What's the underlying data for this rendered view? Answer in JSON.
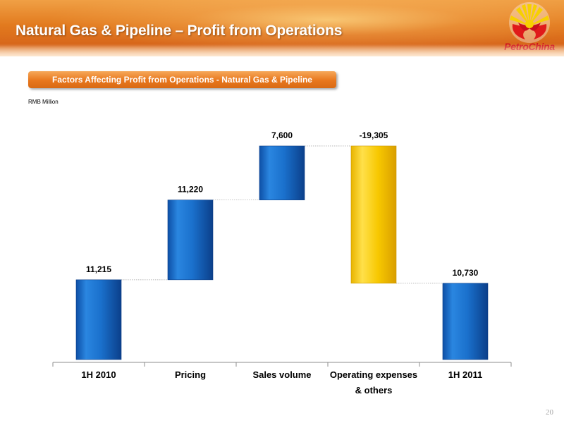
{
  "header": {
    "title": "Natural Gas & Pipeline – Profit from Operations",
    "logo_text": "PetroChina"
  },
  "subtitle": "Factors Affecting Profit from Operations - Natural Gas & Pipeline",
  "units": "RMB Million",
  "page_number": "20",
  "colors": {
    "blue": "#1a6fcc",
    "yellow": "#f5c400",
    "header_orange": "#e27a1e",
    "logo_red": "#d0101a"
  },
  "chart_data": {
    "type": "bar",
    "subtype": "waterfall",
    "categories": [
      "1H 2010",
      "Pricing",
      "Sales volume",
      "Operating expenses\n& others",
      "1H 2011"
    ],
    "values": [
      11215,
      11220,
      7600,
      -19305,
      10730
    ],
    "value_labels": [
      "11,215",
      "11,220",
      "7,600",
      "-19,305",
      "10,730"
    ],
    "bar_kind": [
      "total",
      "delta",
      "delta",
      "delta",
      "total"
    ],
    "bar_colors": [
      "blue",
      "blue",
      "blue",
      "yellow",
      "blue"
    ],
    "ylim": [
      0,
      30035
    ],
    "connectors": true,
    "grid": false,
    "legend": "none"
  }
}
